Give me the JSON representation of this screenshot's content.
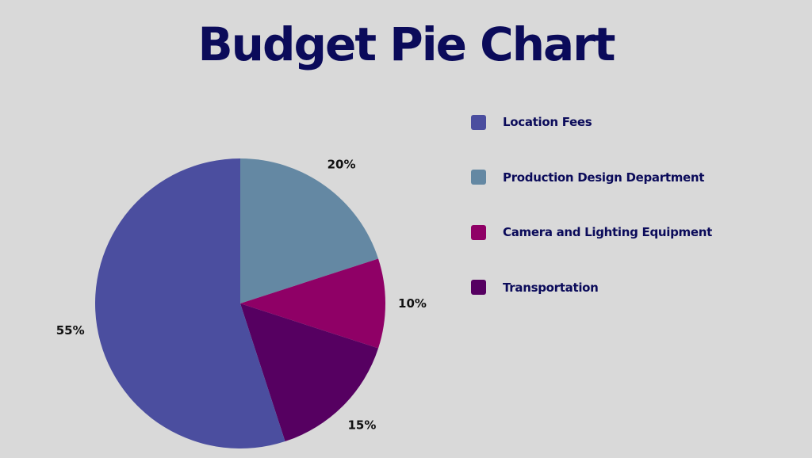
{
  "chart_data": {
    "type": "pie",
    "title": "Budget Pie Chart",
    "legend_position": "right",
    "categories": [
      "Location Fees",
      "Production Design Department",
      "Camera and Lighting Equipment",
      "Transportation"
    ],
    "values": [
      55,
      20,
      10,
      15
    ],
    "value_labels": [
      "55%",
      "20%",
      "10%",
      "15%"
    ],
    "colors": [
      "#4b4e9f",
      "#6488a3",
      "#8f0066",
      "#560061"
    ],
    "slice_order_clockwise_from_top": [
      "Production Design Department",
      "Camera and Lighting Equipment",
      "Transportation",
      "Location Fees"
    ]
  }
}
